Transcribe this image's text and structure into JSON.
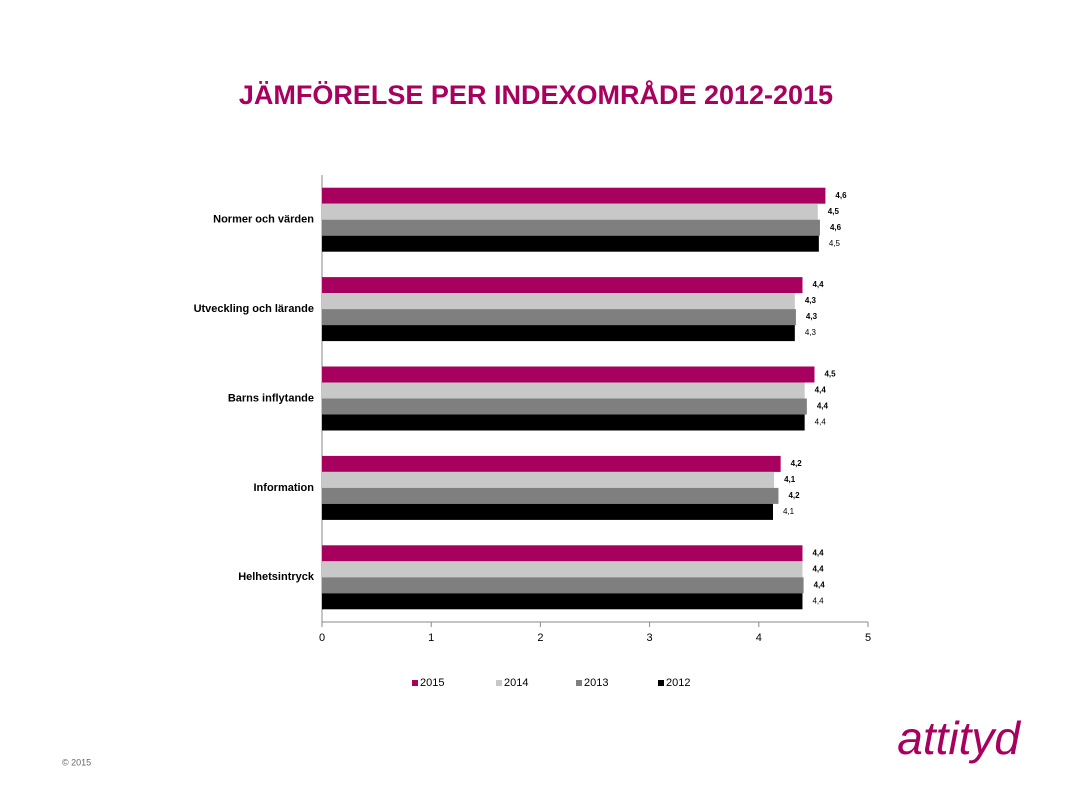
{
  "chart_data": {
    "type": "barh",
    "title": "JÄMFÖRELSE PER INDEXOMRÅDE 2012-2015",
    "categories": [
      "Normer och värden",
      "Utveckling och lärande",
      "Barns inflytande",
      "Information",
      "Helhetsintryck"
    ],
    "series": [
      {
        "name": "2015",
        "color": "#a8005e",
        "values": [
          4.61,
          4.4,
          4.51,
          4.2,
          4.4
        ],
        "value_labels": [
          "4,6",
          "4,4",
          "4,5",
          "4,2",
          "4,4"
        ]
      },
      {
        "name": "2014",
        "color": "#c8c8c8",
        "values": [
          4.54,
          4.33,
          4.42,
          4.14,
          4.4
        ],
        "value_labels": [
          "4,5",
          "4,3",
          "4,4",
          "4,1",
          "4,4"
        ]
      },
      {
        "name": "2013",
        "color": "#7f7f7f",
        "values": [
          4.56,
          4.34,
          4.44,
          4.18,
          4.41
        ],
        "value_labels": [
          "4,6",
          "4,3",
          "4,4",
          "4,2",
          "4,4"
        ]
      },
      {
        "name": "2012",
        "color": "#000000",
        "values": [
          4.55,
          4.33,
          4.42,
          4.13,
          4.4
        ],
        "value_labels": [
          "4,5",
          "4,3",
          "4,4",
          "4,1",
          "4,4"
        ]
      }
    ],
    "xlim": [
      0,
      5
    ],
    "xticks": [
      0,
      1,
      2,
      3,
      4,
      5
    ],
    "grid": false,
    "legend": "bottom"
  },
  "footer": {
    "copyright": "© 2015",
    "logo": "attityd"
  }
}
